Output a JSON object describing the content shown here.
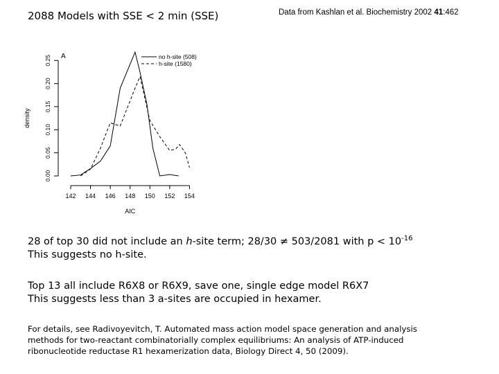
{
  "title": "2088 Models with SSE < 2 min (SSE)",
  "citation": {
    "prefix": "Data from Kashlan et al. Biochemistry 2002",
    "volume": "41",
    "pages": ":462"
  },
  "chart_data": {
    "type": "line",
    "panel_label": "A",
    "xlabel": "AIC",
    "ylabel": "density",
    "xlim": [
      141.3,
      155.3
    ],
    "ylim": [
      0,
      0.27
    ],
    "x_ticks": [
      142,
      144,
      146,
      148,
      150,
      152,
      154
    ],
    "y_ticks": [
      "0.00",
      "0.05",
      "0.10",
      "0.15",
      "0.20",
      "0.25"
    ],
    "grid": false,
    "legend_position": "top-right",
    "series": [
      {
        "name": "no h-site (508)",
        "style": "solid",
        "points": [
          [
            142,
            0
          ],
          [
            143,
            0.002
          ],
          [
            144,
            0.016
          ],
          [
            145,
            0.032
          ],
          [
            146,
            0.065
          ],
          [
            147,
            0.19
          ],
          [
            148,
            0.242
          ],
          [
            148.5,
            0.268
          ],
          [
            149,
            0.225
          ],
          [
            149.7,
            0.155
          ],
          [
            150.3,
            0.06
          ],
          [
            151,
            0
          ],
          [
            152,
            0.003
          ],
          [
            152.9,
            0
          ]
        ]
      },
      {
        "name": "h-site (1580)",
        "style": "dashed",
        "points": [
          [
            143,
            0
          ],
          [
            144,
            0.015
          ],
          [
            145,
            0.06
          ],
          [
            146,
            0.115
          ],
          [
            147,
            0.108
          ],
          [
            148.5,
            0.19
          ],
          [
            149,
            0.215
          ],
          [
            150,
            0.12
          ],
          [
            151,
            0.085
          ],
          [
            152,
            0.055
          ],
          [
            152.6,
            0.058
          ],
          [
            153,
            0.068
          ],
          [
            153.6,
            0.049
          ],
          [
            154,
            0.018
          ]
        ]
      }
    ]
  },
  "para1": {
    "text_a": "28 of top 30 did not include an ",
    "italic": "h",
    "text_b": "-site term; 28/30 ≠ 503/2081 with p < 10",
    "exponent": "-16",
    "line2": "This suggests no h-site."
  },
  "para2": {
    "line1": "Top 13 all include R6X8 or R6X9, save one, single edge model R6X7",
    "line2": "This suggests less than 3 a-sites are occupied in hexamer."
  },
  "details": {
    "line1": "For details, see Radivoyevitch, T. Automated mass action model space generation and analysis",
    "line2": "methods for two-reactant combinatorially complex equilibriums: An analysis of ATP-induced",
    "line3": "ribonucleotide reductase R1 hexamerization data, Biology Direct 4, 50 (2009)."
  }
}
